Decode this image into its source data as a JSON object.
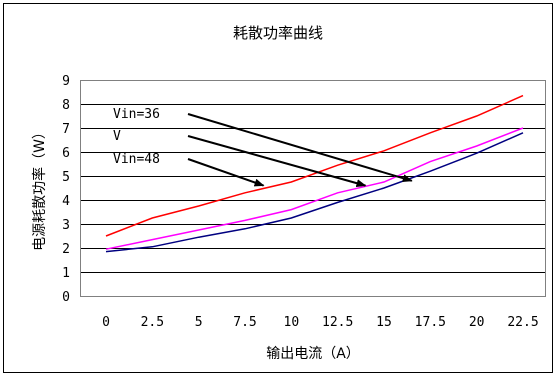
{
  "chart_data": {
    "type": "line",
    "title": "耗散功率曲线",
    "xlabel": "输出电流（A）",
    "ylabel": "电源耗散功率（W）",
    "xlim": [
      0,
      22.5
    ],
    "ylim": [
      0,
      9
    ],
    "x_ticks": [
      "0",
      "2.5",
      "5",
      "7.5",
      "10",
      "12.5",
      "15",
      "17.5",
      "20",
      "22.5"
    ],
    "y_ticks": [
      "0",
      "1",
      "2",
      "3",
      "4",
      "5",
      "6",
      "7",
      "8",
      "9"
    ],
    "grid": "horizontal",
    "x": [
      0,
      2.5,
      5,
      7.5,
      10,
      12.5,
      15,
      17.5,
      20,
      22.5
    ],
    "series": [
      {
        "color": "#ff0000",
        "values": [
          2.5,
          3.25,
          3.75,
          4.3,
          4.75,
          5.45,
          6.05,
          6.8,
          7.5,
          8.35
        ]
      },
      {
        "color": "#ff00ff",
        "values": [
          1.95,
          2.35,
          2.75,
          3.15,
          3.6,
          4.3,
          4.75,
          5.6,
          6.25,
          7.0
        ]
      },
      {
        "color": "#000080",
        "values": [
          1.85,
          2.05,
          2.45,
          2.8,
          3.25,
          3.9,
          4.5,
          5.2,
          5.95,
          6.8
        ]
      }
    ],
    "annotations": [
      {
        "text": "Vin=36",
        "arrow_to": [
          16.5,
          4.8
        ]
      },
      {
        "text": "V",
        "arrow_to": [
          14,
          4.6
        ]
      },
      {
        "text": "Vin=48",
        "arrow_to": [
          8.5,
          4.6
        ]
      }
    ]
  }
}
